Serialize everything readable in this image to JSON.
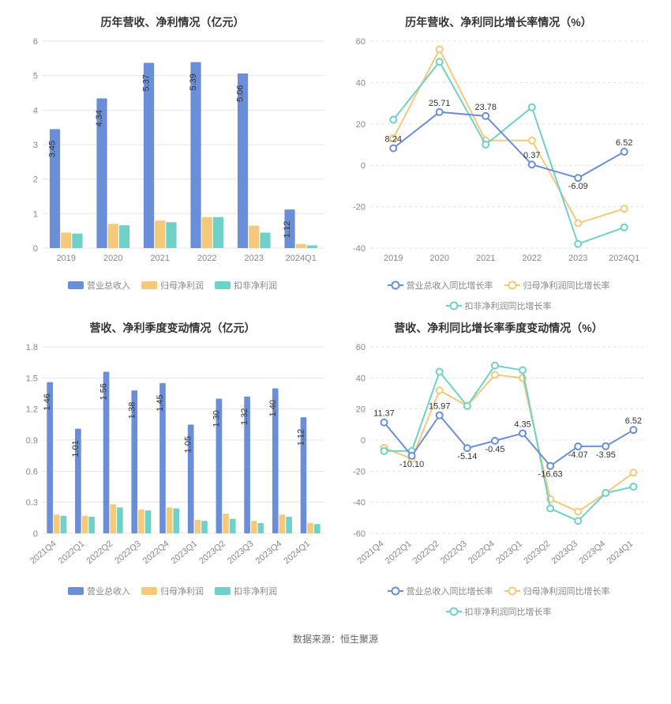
{
  "colors": {
    "blue": "#6a8fd8",
    "orange": "#f4c97a",
    "teal": "#6fd1c8",
    "grid": "#e6e6e6",
    "axis_text": "#888888",
    "label_text": "#333333",
    "bg": "#ffffff"
  },
  "footer": {
    "label": "数据来源：",
    "source": "恒生聚源"
  },
  "chart_tl": {
    "type": "bar-grouped",
    "title": "历年营收、净利情况（亿元）",
    "categories": [
      "2019",
      "2020",
      "2021",
      "2022",
      "2023",
      "2024Q1"
    ],
    "ylim": [
      0,
      6
    ],
    "ytick_step": 1,
    "series": [
      {
        "name": "营业总收入",
        "color": "#6a8fd8",
        "values": [
          3.45,
          4.34,
          5.37,
          5.39,
          5.06,
          1.12
        ],
        "labels": [
          "3.45",
          "4.34",
          "5.37",
          "5.39",
          "5.06",
          "1.12"
        ]
      },
      {
        "name": "归母净利润",
        "color": "#f4c97a",
        "values": [
          0.45,
          0.7,
          0.8,
          0.9,
          0.65,
          0.12
        ]
      },
      {
        "name": "扣非净利润",
        "color": "#6fd1c8",
        "values": [
          0.42,
          0.66,
          0.75,
          0.9,
          0.45,
          0.08
        ]
      }
    ],
    "legend": [
      "营业总收入",
      "归母净利润",
      "扣非净利润"
    ]
  },
  "chart_tr": {
    "type": "line",
    "title": "历年营收、净利同比增长率情况（%）",
    "categories": [
      "2019",
      "2020",
      "2021",
      "2022",
      "2023",
      "2024Q1"
    ],
    "ylim": [
      -40,
      60
    ],
    "ytick_step": 20,
    "series": [
      {
        "name": "营业总收入同比增长率",
        "color": "#6a8fd8",
        "values": [
          8.24,
          25.71,
          23.78,
          0.37,
          -6.09,
          6.52
        ],
        "labels": [
          "8.24",
          "25.71",
          "23.78",
          "0.37",
          "-6.09",
          "6.52"
        ]
      },
      {
        "name": "归母净利润同比增长率",
        "color": "#f4c97a",
        "values": [
          13,
          56,
          12,
          12,
          -28,
          -21
        ]
      },
      {
        "name": "扣非净利润同比增长率",
        "color": "#6fd1c8",
        "values": [
          22,
          50,
          10,
          28,
          -38,
          -30
        ]
      }
    ],
    "legend": [
      "营业总收入同比增长率",
      "归母净利润同比增长率",
      "扣非净利润同比增长率"
    ]
  },
  "chart_bl": {
    "type": "bar-grouped",
    "title": "营收、净利季度变动情况（亿元）",
    "categories": [
      "2021Q4",
      "2022Q1",
      "2022Q2",
      "2022Q3",
      "2022Q4",
      "2023Q1",
      "2023Q2",
      "2023Q3",
      "2023Q4",
      "2024Q1"
    ],
    "ylim": [
      0,
      1.8
    ],
    "ytick_step": 0.3,
    "series": [
      {
        "name": "营业总收入",
        "color": "#6a8fd8",
        "values": [
          1.46,
          1.01,
          1.56,
          1.38,
          1.45,
          1.05,
          1.3,
          1.32,
          1.4,
          1.12
        ],
        "labels": [
          "1.46",
          "1.01",
          "1.56",
          "1.38",
          "1.45",
          "1.05",
          "1.30",
          "1.32",
          "1.40",
          "1.12"
        ]
      },
      {
        "name": "归母净利润",
        "color": "#f4c97a",
        "values": [
          0.18,
          0.17,
          0.28,
          0.23,
          0.25,
          0.13,
          0.19,
          0.12,
          0.18,
          0.1
        ]
      },
      {
        "name": "扣非净利润",
        "color": "#6fd1c8",
        "values": [
          0.17,
          0.16,
          0.25,
          0.22,
          0.24,
          0.12,
          0.14,
          0.1,
          0.16,
          0.09
        ]
      }
    ],
    "legend": [
      "营业总收入",
      "归母净利润",
      "扣非净利润"
    ]
  },
  "chart_br": {
    "type": "line",
    "title": "营收、净利同比增长率季度变动情况（%）",
    "categories": [
      "2021Q4",
      "2022Q1",
      "2022Q2",
      "2022Q3",
      "2022Q4",
      "2023Q1",
      "2023Q2",
      "2023Q3",
      "2023Q4",
      "2024Q1"
    ],
    "ylim": [
      -60,
      60
    ],
    "ytick_step": 20,
    "series": [
      {
        "name": "营业总收入同比增长率",
        "color": "#6a8fd8",
        "values": [
          11.37,
          -10.1,
          15.97,
          -5.14,
          -0.45,
          4.35,
          -16.63,
          -4.07,
          -3.95,
          6.52
        ],
        "labels": [
          "11.37",
          "-10.10",
          "15.97",
          "-5.14",
          "-0.45",
          "4.35",
          "-16.63",
          "-4.07",
          "-3.95",
          "6.52"
        ]
      },
      {
        "name": "归母净利润同比增长率",
        "color": "#f4c97a",
        "values": [
          -5,
          -12,
          32,
          22,
          42,
          40,
          -38,
          -46,
          -34,
          -21
        ]
      },
      {
        "name": "扣非净利润同比增长率",
        "color": "#6fd1c8",
        "values": [
          -7,
          -7,
          44,
          22,
          48,
          45,
          -44,
          -52,
          -34,
          -30
        ]
      }
    ],
    "legend": [
      "营业总收入同比增长率",
      "归母净利润同比增长率",
      "扣非净利润同比增长率"
    ]
  }
}
